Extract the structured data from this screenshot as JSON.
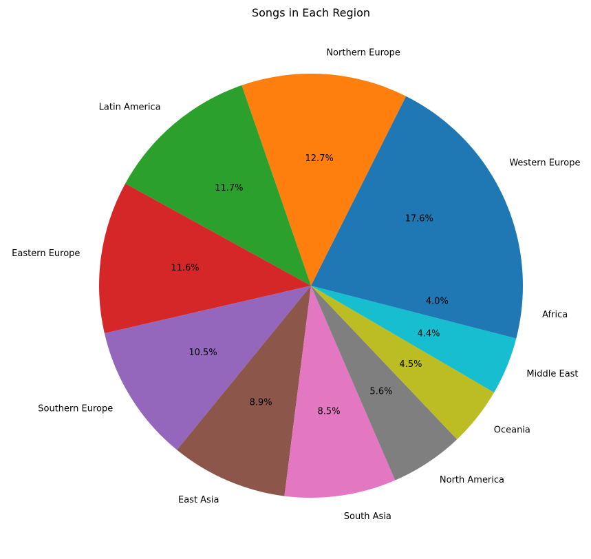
{
  "chart_data": {
    "type": "pie",
    "title": "Songs in Each Region",
    "start_angle_deg": 0,
    "direction": "counterclockwise",
    "slices": [
      {
        "label": "Western Europe",
        "value": 17.6,
        "pct_label": "17.6%",
        "color": "#1f77b4"
      },
      {
        "label": "Northern Europe",
        "value": 12.7,
        "pct_label": "12.7%",
        "color": "#ff7f0e"
      },
      {
        "label": "Latin America",
        "value": 11.7,
        "pct_label": "11.7%",
        "color": "#2ca02c"
      },
      {
        "label": "Eastern Europe",
        "value": 11.6,
        "pct_label": "11.6%",
        "color": "#d62728"
      },
      {
        "label": "Southern Europe",
        "value": 10.5,
        "pct_label": "10.5%",
        "color": "#9467bd"
      },
      {
        "label": "East Asia",
        "value": 8.9,
        "pct_label": "8.9%",
        "color": "#8c564b"
      },
      {
        "label": "South Asia",
        "value": 8.5,
        "pct_label": "8.5%",
        "color": "#e377c2"
      },
      {
        "label": "North America",
        "value": 5.6,
        "pct_label": "5.6%",
        "color": "#7f7f7f"
      },
      {
        "label": "Oceania",
        "value": 4.5,
        "pct_label": "4.5%",
        "color": "#bcbd22"
      },
      {
        "label": "Middle East",
        "value": 4.4,
        "pct_label": "4.4%",
        "color": "#17becf"
      },
      {
        "label": "Africa",
        "value": 4.0,
        "pct_label": "4.0%",
        "color": "#1f77b4"
      }
    ]
  }
}
